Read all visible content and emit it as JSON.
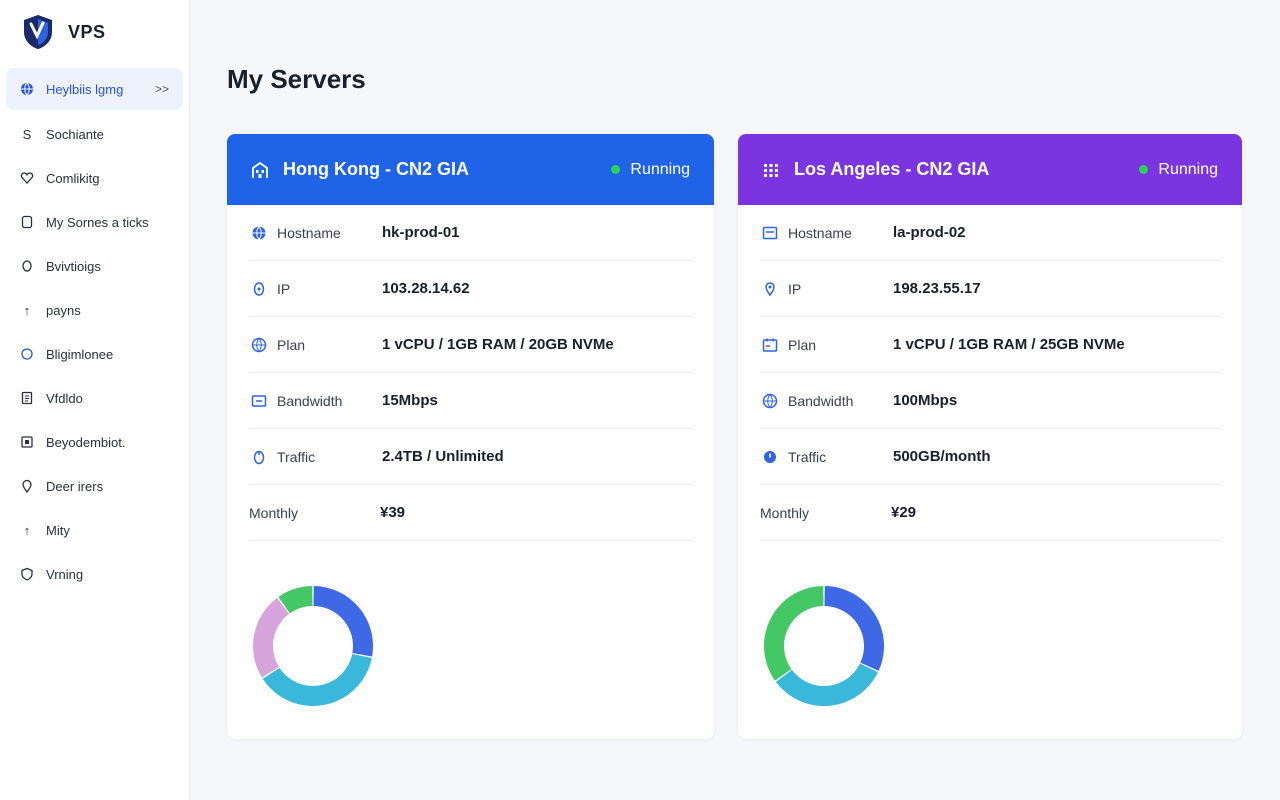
{
  "brand": {
    "name": "VPS"
  },
  "sidebar": {
    "items": [
      {
        "label": "Heylbiis lgmg",
        "icon": "globe-icon",
        "active": true
      },
      {
        "label": "Sochiante",
        "icon": "s-icon"
      },
      {
        "label": "Comlikitg",
        "icon": "heart-icon"
      },
      {
        "label": "My Sornes a ticks",
        "icon": "square-icon"
      },
      {
        "label": "Bvivtioigs",
        "icon": "circle-icon"
      },
      {
        "label": "payns",
        "icon": "arrow-up-icon"
      },
      {
        "label": "Bligimlonee",
        "icon": "ring-icon"
      },
      {
        "label": "Vfdldo",
        "icon": "document-icon"
      },
      {
        "label": "Beyodembiot.",
        "icon": "box-icon"
      },
      {
        "label": "Deer irers",
        "icon": "pin-icon"
      },
      {
        "label": "Mity",
        "icon": "arrow-up-icon"
      },
      {
        "label": "Vrning",
        "icon": "shield-icon"
      }
    ],
    "chevron": ">>"
  },
  "main": {
    "title": "My Servers"
  },
  "servers": [
    {
      "title": "Hong Kong - CN2 GIA",
      "header_icon": "building-icon",
      "status": "Running",
      "status_color": "#2ed158",
      "color": "#1f63e6",
      "rows": [
        {
          "label": "Hostname",
          "value": "hk-prod-01",
          "icon": "globe-icon"
        },
        {
          "label": "IP",
          "value": "103.28.14.62",
          "icon": "location-icon"
        },
        {
          "label": "Plan",
          "value": "1 vCPU / 1GB RAM / 20GB NVMe",
          "icon": "globe-icon"
        },
        {
          "label": "Bandwidth",
          "value": "15Mbps",
          "icon": "bandwidth-icon"
        },
        {
          "label": "Traffic",
          "value": "2.4TB / Unlimited",
          "icon": "traffic-icon"
        },
        {
          "label": "Monthly",
          "value": "¥39"
        }
      ],
      "chart_data": {
        "type": "pie",
        "values": [
          28,
          38,
          24,
          10
        ],
        "colors": [
          "#3d68e6",
          "#3ab8dc",
          "#d6a3dc",
          "#44c765"
        ]
      }
    },
    {
      "title": "Los Angeles - CN2 GIA",
      "header_icon": "grid-icon",
      "status": "Running",
      "status_color": "#2ed158",
      "color": "#7a35e0",
      "rows": [
        {
          "label": "Hostname",
          "value": "la-prod-02",
          "icon": "server-icon"
        },
        {
          "label": "IP",
          "value": "198.23.55.17",
          "icon": "location-icon"
        },
        {
          "label": "Plan",
          "value": "1 vCPU / 1GB RAM / 25GB NVMe",
          "icon": "calendar-icon"
        },
        {
          "label": "Bandwidth",
          "value": "100Mbps",
          "icon": "globe-icon"
        },
        {
          "label": "Traffic",
          "value": "500GB/month",
          "icon": "traffic-icon"
        },
        {
          "label": "Monthly",
          "value": "¥29"
        }
      ],
      "chart_data": {
        "type": "pie",
        "values": [
          32,
          33,
          35
        ],
        "colors": [
          "#3d68e6",
          "#3ab8dc",
          "#44c765"
        ]
      }
    }
  ]
}
